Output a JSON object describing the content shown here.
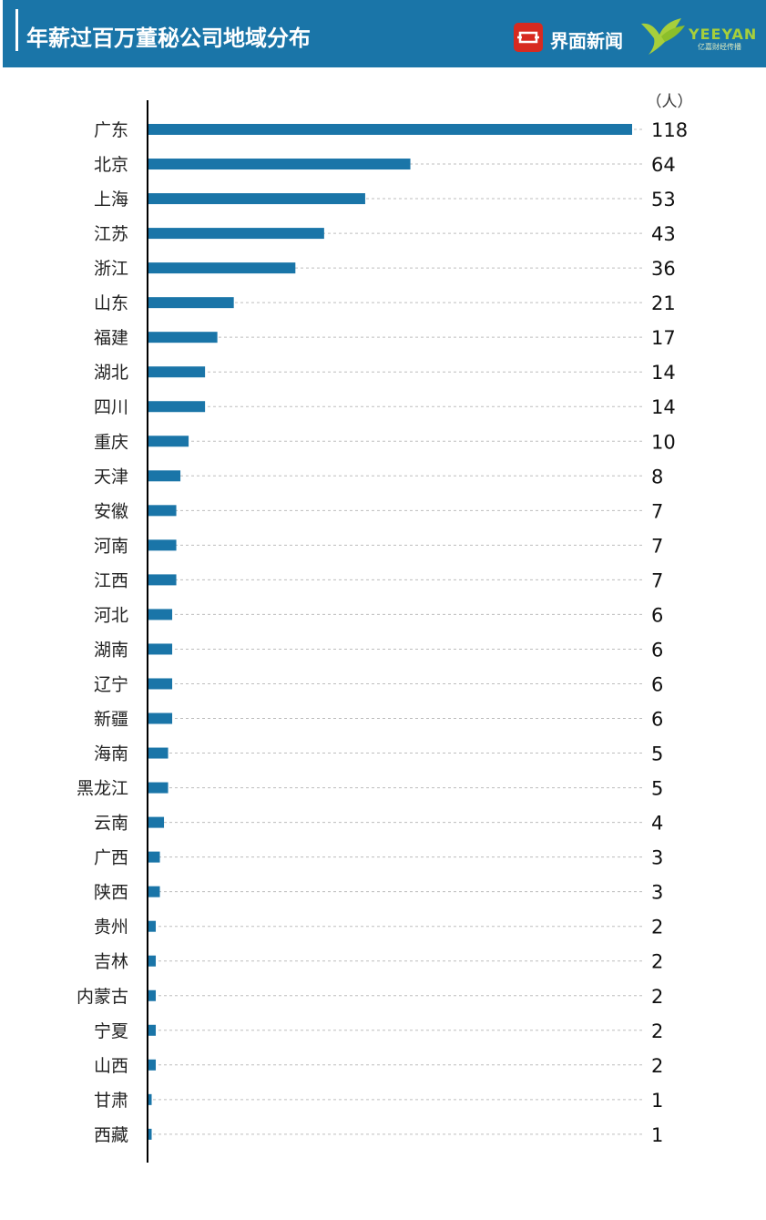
{
  "header": {
    "title": "年薪过百万董秘公司地域分布",
    "brand_primary": "界面新闻",
    "brand_secondary": "YEEYAN",
    "brand_secondary_sub": "亿嘉财经传播"
  },
  "colors": {
    "header_bg": "#1a75a8",
    "bar": "#1a75a8",
    "brand_red": "#d72a20",
    "brand_green": "#a7cf3b"
  },
  "chart_data": {
    "type": "bar",
    "orientation": "horizontal",
    "title": "年薪过百万董秘公司地域分布",
    "unit": "（人）",
    "categories": [
      "广东",
      "北京",
      "上海",
      "江苏",
      "浙江",
      "山东",
      "福建",
      "湖北",
      "四川",
      "重庆",
      "天津",
      "安徽",
      "河南",
      "江西",
      "河北",
      "湖南",
      "辽宁",
      "新疆",
      "海南",
      "黑龙江",
      "云南",
      "广西",
      "陕西",
      "贵州",
      "吉林",
      "内蒙古",
      "宁夏",
      "山西",
      "甘肃",
      "西藏"
    ],
    "values": [
      118,
      64,
      53,
      43,
      36,
      21,
      17,
      14,
      14,
      10,
      8,
      7,
      7,
      7,
      6,
      6,
      6,
      6,
      5,
      5,
      4,
      3,
      3,
      2,
      2,
      2,
      2,
      2,
      1,
      1
    ],
    "xlim": [
      0,
      118
    ],
    "grid": "dashed horizontal guide lines",
    "legend": "none"
  }
}
